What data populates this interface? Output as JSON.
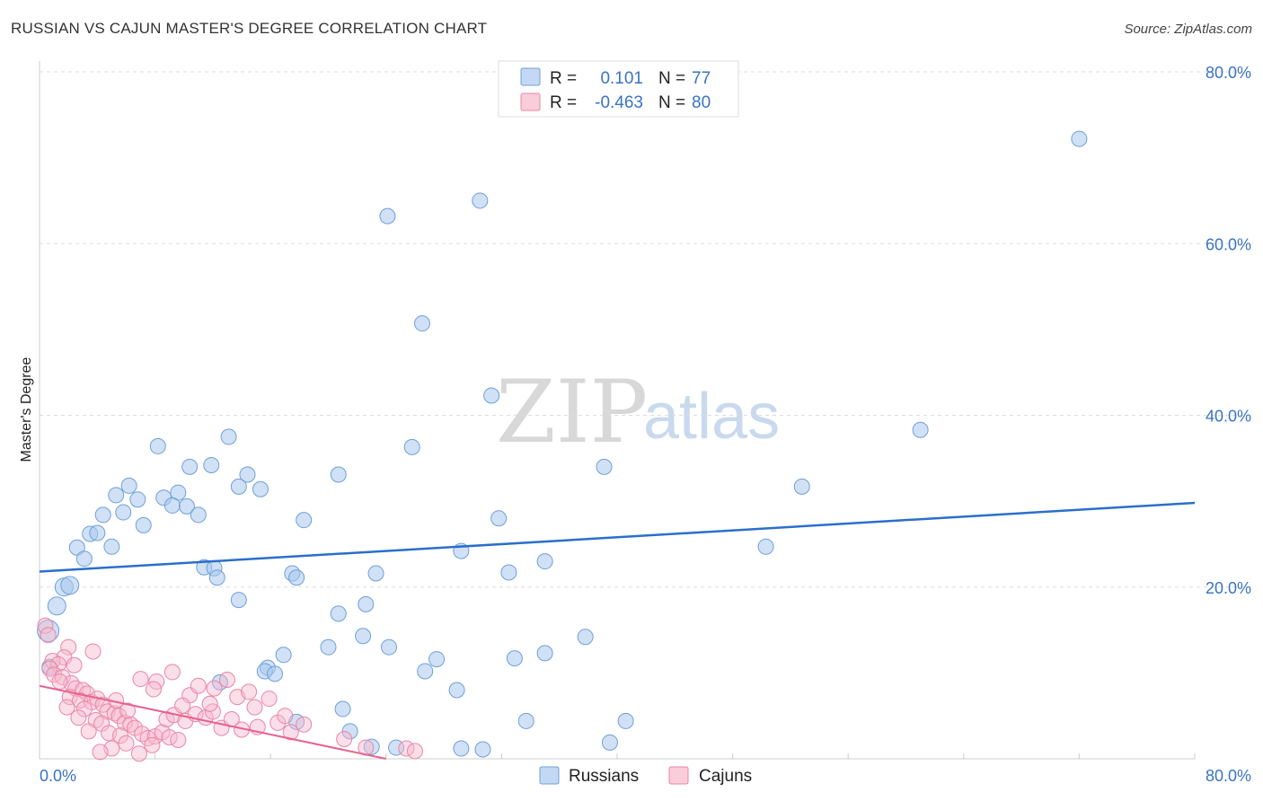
{
  "title": "RUSSIAN VS CAJUN MASTER'S DEGREE CORRELATION CHART",
  "source": "Source: ZipAtlas.com",
  "watermark": {
    "zip": "ZIP",
    "atlas": "atlas"
  },
  "colors": {
    "russians_fill": "#a9c8ef",
    "russians_stroke": "#6f9fd8",
    "russians_line": "#2a6fcb",
    "cajuns_fill": "#f6b8cb",
    "cajuns_stroke": "#ea85a6",
    "cajuns_line": "#e7628f",
    "grid": "#dddddd",
    "tick_text": "#3a73c4"
  },
  "legend": {
    "rows": [
      {
        "r_label": "R =",
        "r_value": "0.101",
        "n_label": "N =",
        "n_value": "77"
      },
      {
        "r_label": "R =",
        "r_value": "-0.463",
        "n_label": "N =",
        "n_value": "80"
      }
    ]
  },
  "chart_data": {
    "type": "scatter",
    "title": "RUSSIAN VS CAJUN MASTER'S DEGREE CORRELATION CHART",
    "xlabel": "",
    "ylabel": "Master's Degree",
    "xlim": [
      0,
      80
    ],
    "ylim": [
      0,
      80
    ],
    "x_tick_labels": [
      "0.0%",
      "80.0%"
    ],
    "y_tick_labels": [
      "20.0%",
      "40.0%",
      "60.0%",
      "80.0%"
    ],
    "y_tick_values": [
      20,
      40,
      60,
      80
    ],
    "grid": true,
    "legend_position": "bottom-center",
    "series": [
      {
        "name": "Russians",
        "r": 0.101,
        "n": 77,
        "trend": {
          "x0": 0,
          "y0": 21.8,
          "x1": 80,
          "y1": 29.8
        },
        "points": [
          [
            72.0,
            72.2
          ],
          [
            30.5,
            65.0
          ],
          [
            24.1,
            63.2
          ],
          [
            26.5,
            50.7
          ],
          [
            31.3,
            42.3
          ],
          [
            61.0,
            38.3
          ],
          [
            13.1,
            37.5
          ],
          [
            8.2,
            36.4
          ],
          [
            25.8,
            36.3
          ],
          [
            10.4,
            34.0
          ],
          [
            11.9,
            34.2
          ],
          [
            39.1,
            34.0
          ],
          [
            14.4,
            33.1
          ],
          [
            20.7,
            33.1
          ],
          [
            6.2,
            31.8
          ],
          [
            13.8,
            31.7
          ],
          [
            15.3,
            31.4
          ],
          [
            5.3,
            30.7
          ],
          [
            52.8,
            31.7
          ],
          [
            9.6,
            31.0
          ],
          [
            6.8,
            30.2
          ],
          [
            8.6,
            30.4
          ],
          [
            9.2,
            29.5
          ],
          [
            10.2,
            29.4
          ],
          [
            5.8,
            28.7
          ],
          [
            11.0,
            28.4
          ],
          [
            4.4,
            28.4
          ],
          [
            31.8,
            28.0
          ],
          [
            18.3,
            27.8
          ],
          [
            7.2,
            27.2
          ],
          [
            3.5,
            26.2
          ],
          [
            4.0,
            26.3
          ],
          [
            2.6,
            24.6
          ],
          [
            5.0,
            24.7
          ],
          [
            3.1,
            23.3
          ],
          [
            29.2,
            24.2
          ],
          [
            50.3,
            24.7
          ],
          [
            35.0,
            23.0
          ],
          [
            11.4,
            22.3
          ],
          [
            12.1,
            22.2
          ],
          [
            17.5,
            21.6
          ],
          [
            17.8,
            21.1
          ],
          [
            23.3,
            21.6
          ],
          [
            32.5,
            21.7
          ],
          [
            12.3,
            21.1
          ],
          [
            1.7,
            20.0
          ],
          [
            2.1,
            20.2
          ],
          [
            13.8,
            18.5
          ],
          [
            22.6,
            18.0
          ],
          [
            1.2,
            17.8
          ],
          [
            20.7,
            16.9
          ],
          [
            0.6,
            14.9
          ],
          [
            22.4,
            14.3
          ],
          [
            37.8,
            14.2
          ],
          [
            20.0,
            13.0
          ],
          [
            24.2,
            13.0
          ],
          [
            16.9,
            12.1
          ],
          [
            35.0,
            12.3
          ],
          [
            32.9,
            11.7
          ],
          [
            27.5,
            11.6
          ],
          [
            15.8,
            10.6
          ],
          [
            15.6,
            10.2
          ],
          [
            26.7,
            10.2
          ],
          [
            16.3,
            9.9
          ],
          [
            12.5,
            8.9
          ],
          [
            28.9,
            8.0
          ],
          [
            21.0,
            5.8
          ],
          [
            17.8,
            4.3
          ],
          [
            33.7,
            4.4
          ],
          [
            40.6,
            4.4
          ],
          [
            21.5,
            3.2
          ],
          [
            23.0,
            1.4
          ],
          [
            24.7,
            1.3
          ],
          [
            29.2,
            1.2
          ],
          [
            30.7,
            1.1
          ],
          [
            39.5,
            1.9
          ],
          [
            0.7,
            10.7
          ]
        ]
      },
      {
        "name": "Cajuns",
        "r": -0.463,
        "n": 80,
        "trend": {
          "x0": 0,
          "y0": 8.5,
          "x1": 24.0,
          "y1": 0.0
        },
        "points": [
          [
            0.4,
            15.5
          ],
          [
            0.6,
            14.4
          ],
          [
            2.0,
            13.0
          ],
          [
            1.7,
            11.8
          ],
          [
            0.9,
            11.4
          ],
          [
            1.3,
            11.0
          ],
          [
            0.7,
            10.5
          ],
          [
            1.0,
            9.8
          ],
          [
            1.6,
            9.5
          ],
          [
            2.2,
            8.8
          ],
          [
            2.5,
            8.2
          ],
          [
            3.0,
            8.0
          ],
          [
            3.3,
            7.6
          ],
          [
            2.1,
            7.2
          ],
          [
            2.8,
            6.8
          ],
          [
            3.6,
            6.6
          ],
          [
            4.0,
            7.0
          ],
          [
            4.4,
            6.3
          ],
          [
            1.9,
            6.0
          ],
          [
            3.1,
            5.8
          ],
          [
            4.7,
            5.5
          ],
          [
            5.2,
            5.3
          ],
          [
            5.5,
            5.0
          ],
          [
            2.7,
            4.8
          ],
          [
            3.9,
            4.5
          ],
          [
            4.3,
            4.1
          ],
          [
            5.9,
            4.2
          ],
          [
            6.3,
            4.0
          ],
          [
            6.6,
            3.6
          ],
          [
            3.4,
            3.2
          ],
          [
            4.8,
            3.0
          ],
          [
            5.6,
            2.7
          ],
          [
            7.1,
            2.9
          ],
          [
            7.5,
            2.4
          ],
          [
            8.0,
            2.6
          ],
          [
            8.5,
            3.1
          ],
          [
            9.0,
            2.5
          ],
          [
            9.6,
            2.2
          ],
          [
            6.0,
            1.8
          ],
          [
            7.8,
            1.6
          ],
          [
            5.0,
            1.2
          ],
          [
            4.2,
            0.8
          ],
          [
            6.9,
            0.6
          ],
          [
            8.8,
            4.6
          ],
          [
            9.3,
            5.1
          ],
          [
            10.1,
            4.4
          ],
          [
            10.8,
            5.2
          ],
          [
            11.5,
            4.8
          ],
          [
            12.0,
            5.5
          ],
          [
            12.6,
            3.6
          ],
          [
            13.3,
            4.6
          ],
          [
            14.0,
            3.4
          ],
          [
            15.1,
            3.7
          ],
          [
            16.5,
            4.2
          ],
          [
            17.4,
            3.1
          ],
          [
            8.1,
            9.0
          ],
          [
            9.2,
            10.1
          ],
          [
            10.4,
            7.4
          ],
          [
            11.0,
            8.5
          ],
          [
            12.1,
            8.2
          ],
          [
            13.7,
            7.2
          ],
          [
            14.5,
            7.8
          ],
          [
            15.9,
            7.0
          ],
          [
            7.0,
            9.3
          ],
          [
            7.9,
            8.1
          ],
          [
            6.1,
            5.6
          ],
          [
            3.7,
            12.5
          ],
          [
            2.4,
            10.9
          ],
          [
            1.4,
            9.0
          ],
          [
            5.3,
            6.8
          ],
          [
            9.9,
            6.2
          ],
          [
            11.8,
            6.4
          ],
          [
            13.0,
            9.2
          ],
          [
            14.9,
            6.0
          ],
          [
            17.0,
            5.0
          ],
          [
            18.3,
            4.0
          ],
          [
            21.1,
            2.3
          ],
          [
            22.6,
            1.3
          ],
          [
            25.4,
            1.2
          ],
          [
            26.0,
            0.9
          ]
        ]
      }
    ]
  }
}
